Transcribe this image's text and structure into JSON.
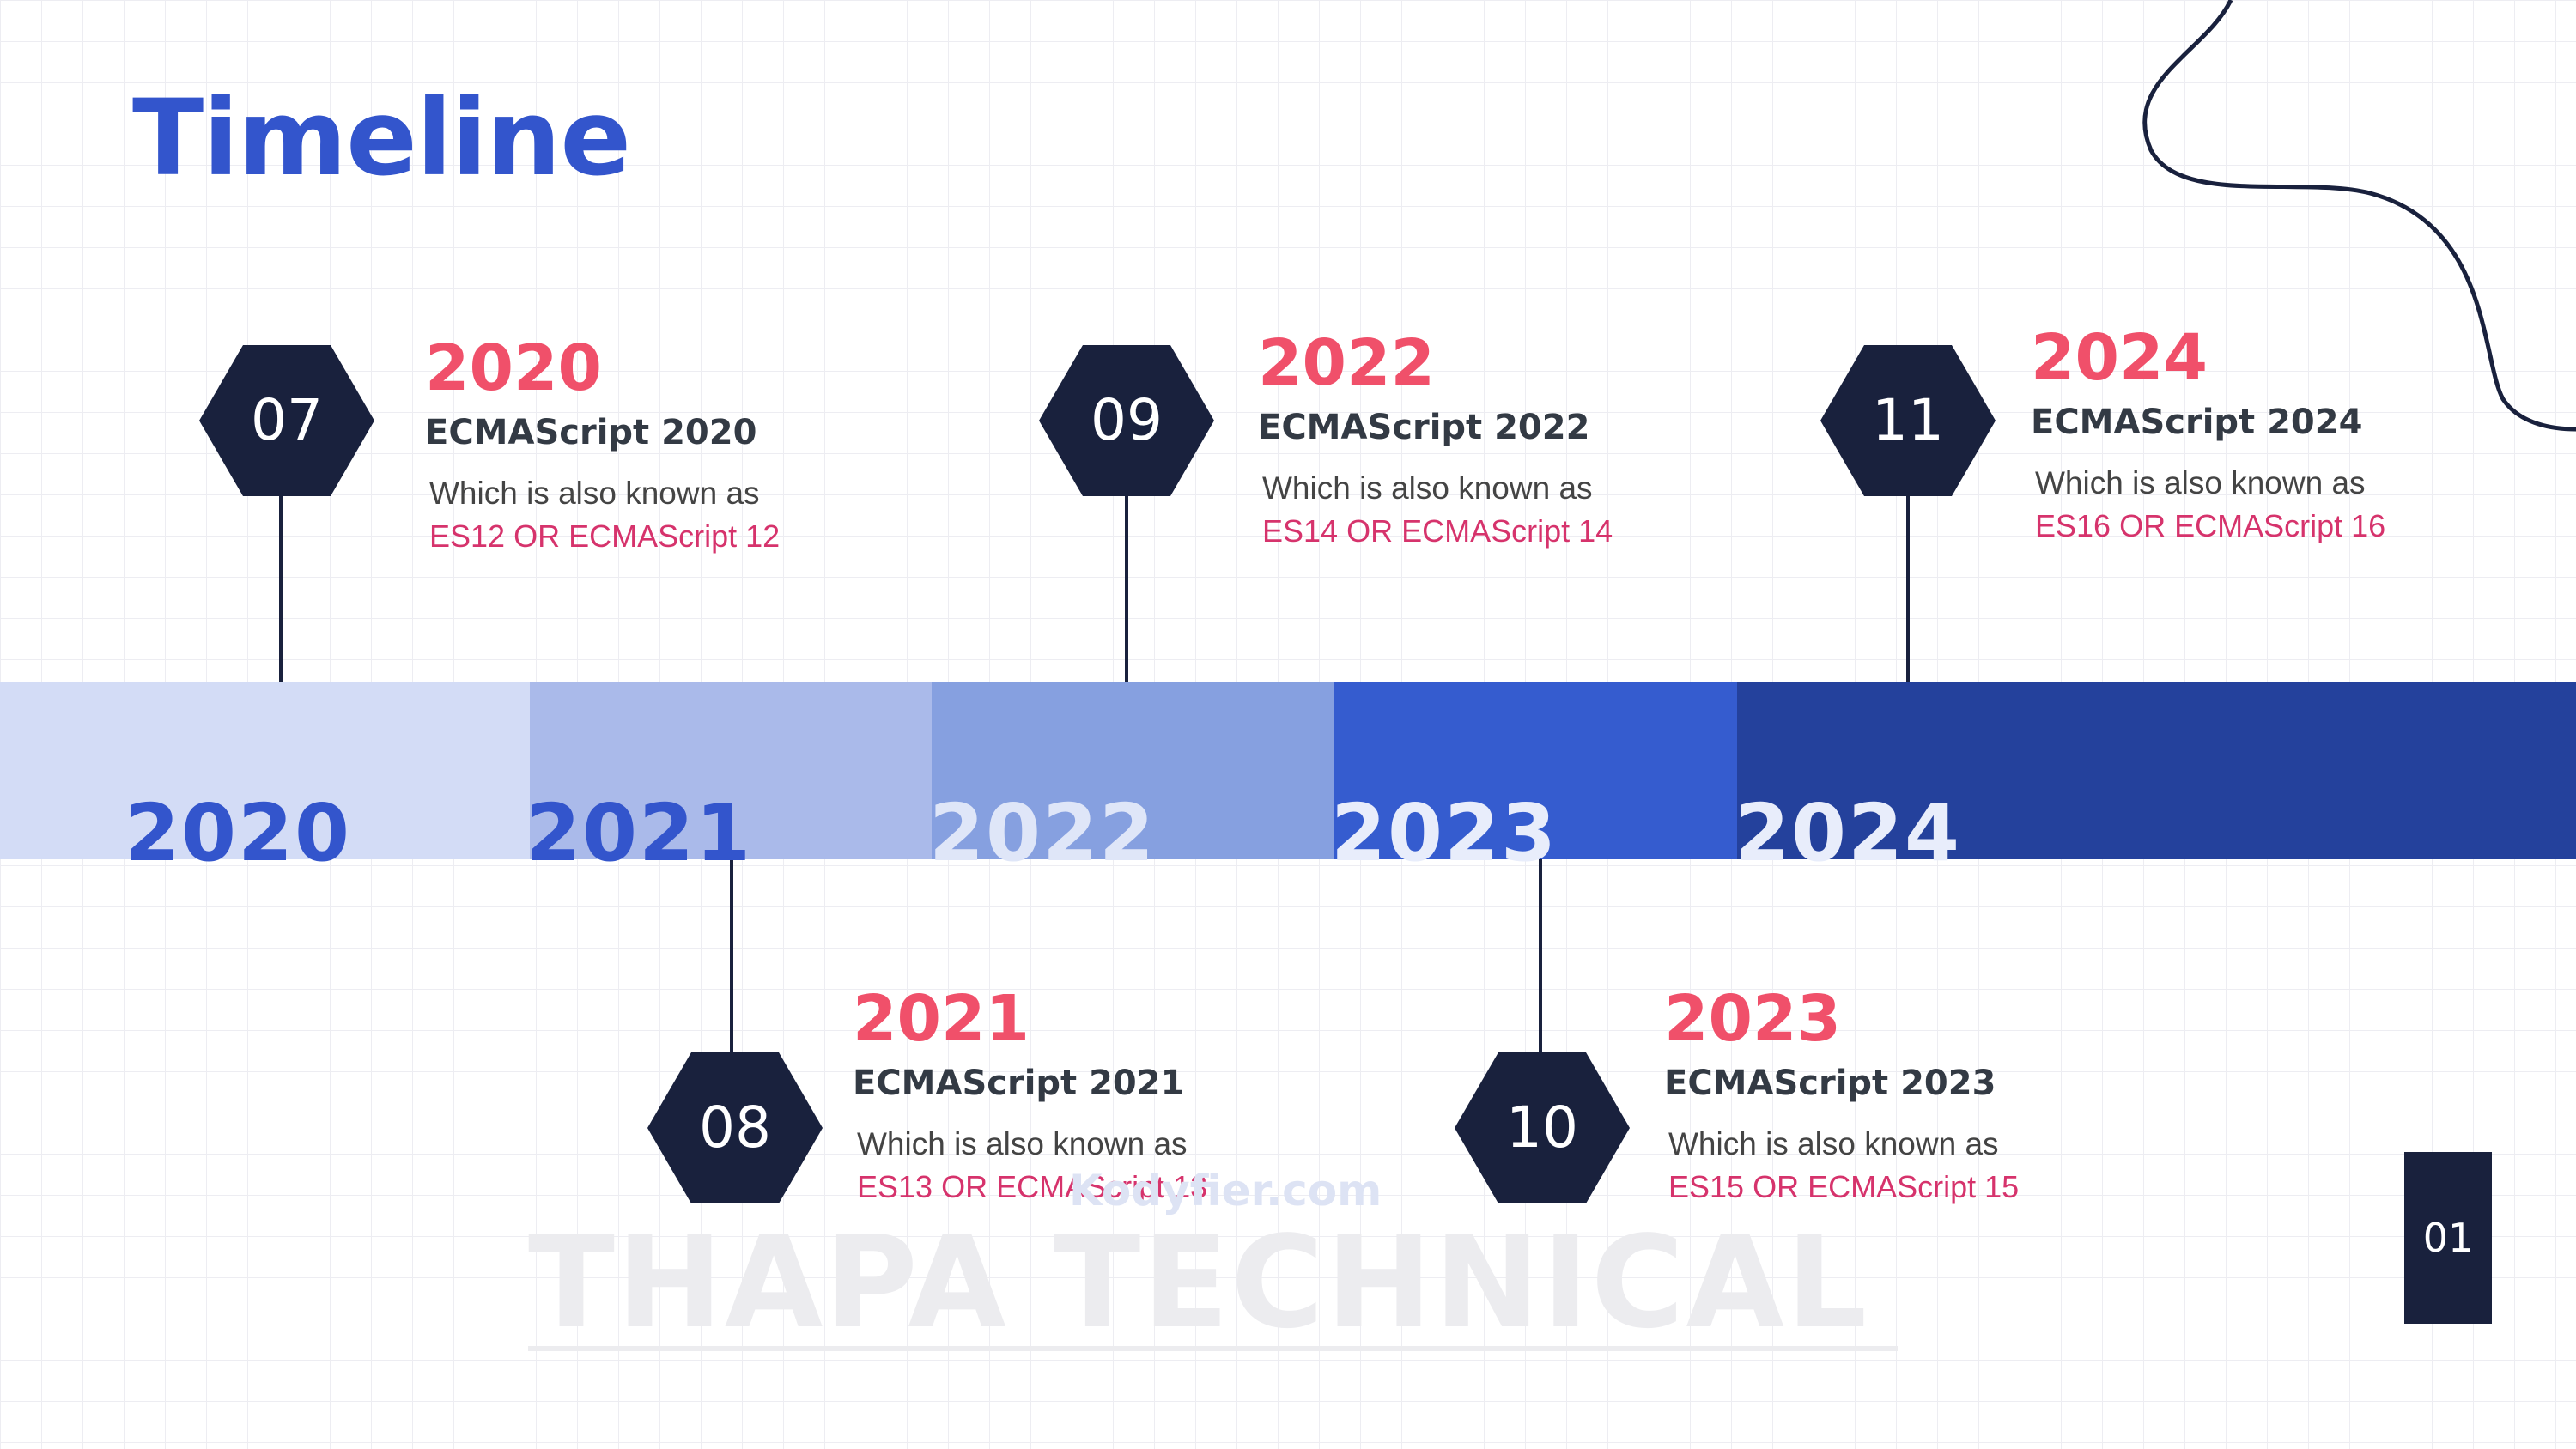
{
  "title": "Timeline",
  "band": [
    {
      "year": "2020",
      "fill": "#d3dcf6",
      "text_color": "#3355cc"
    },
    {
      "year": "2021",
      "fill": "#aabaea",
      "text_color": "#3355cc"
    },
    {
      "year": "2022",
      "fill": "#86a0e0",
      "text_color": "#dfe6f8"
    },
    {
      "year": "2023",
      "fill": "#355ccf",
      "text_color": "#e8edfb"
    },
    {
      "year": "2024",
      "fill": "#24419c",
      "text_color": "#e8edfb"
    }
  ],
  "milestones": [
    {
      "number": "07",
      "year": "2020",
      "name": "ECMAScript 2020",
      "desc": "Which is also known as",
      "alias": "ES12  OR ECMAScript 12"
    },
    {
      "number": "08",
      "year": "2021",
      "name": "ECMAScript 2021",
      "desc": "Which is also known as",
      "alias": "ES13  OR ECMAScript 13"
    },
    {
      "number": "09",
      "year": "2022",
      "name": "ECMAScript 2022",
      "desc": "Which is also known as",
      "alias": "ES14  OR ECMAScript 14"
    },
    {
      "number": "10",
      "year": "2023",
      "name": "ECMAScript 2023",
      "desc": "Which is also known as",
      "alias": "ES15  OR ECMAScript 15"
    },
    {
      "number": "11",
      "year": "2024",
      "name": "ECMAScript 2024",
      "desc": "Which is also known as",
      "alias": "ES16  OR ECMAScript 16"
    }
  ],
  "watermark": {
    "main": "THAPA TECHNICAL",
    "small": "Kodyfier.com"
  },
  "page_number": "01",
  "colors": {
    "accent_blue": "#3355cc",
    "dark_navy": "#19213d",
    "year_red": "#f0506a",
    "alias_pink": "#d6336c"
  }
}
